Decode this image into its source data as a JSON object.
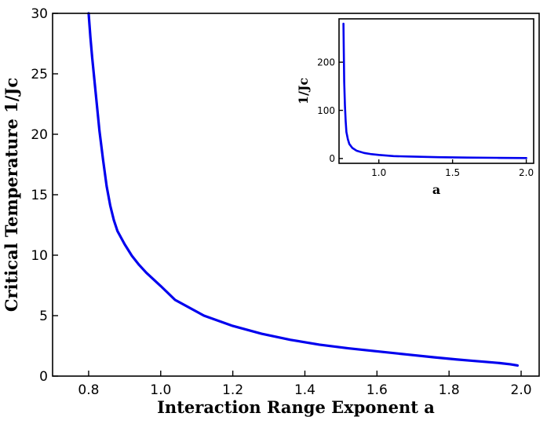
{
  "chart_data": [
    {
      "id": "main",
      "type": "line",
      "title": "",
      "xlabel": "Interaction Range Exponent a",
      "ylabel": "Critical Temperature 1/Jc",
      "xlim": [
        0.7,
        2.05
      ],
      "ylim": [
        0,
        30
      ],
      "xticks": [
        0.8,
        1.0,
        1.2,
        1.4,
        1.6,
        1.8,
        2.0
      ],
      "xtick_labels": [
        "0.8",
        "1.0",
        "1.2",
        "1.4",
        "1.6",
        "1.8",
        "2.0"
      ],
      "yticks": [
        0,
        5,
        10,
        15,
        20,
        25,
        30
      ],
      "ytick_labels": [
        "0",
        "5",
        "10",
        "15",
        "20",
        "25",
        "30"
      ],
      "grid": false,
      "legend": "none",
      "series": [
        {
          "color": "#0000ee",
          "x": [
            0.8,
            0.805,
            0.81,
            0.82,
            0.83,
            0.84,
            0.85,
            0.86,
            0.87,
            0.88,
            0.9,
            0.92,
            0.94,
            0.96,
            1.0,
            1.04,
            1.12,
            1.2,
            1.28,
            1.36,
            1.44,
            1.52,
            1.6,
            1.68,
            1.76,
            1.82,
            1.86,
            1.9,
            1.94,
            1.97,
            1.99
          ],
          "y": [
            30.0,
            28.0,
            26.3,
            23.3,
            20.3,
            17.9,
            15.7,
            14.1,
            12.9,
            12.0,
            10.9,
            9.95,
            9.2,
            8.55,
            7.45,
            6.3,
            5.0,
            4.15,
            3.5,
            3.0,
            2.6,
            2.3,
            2.05,
            1.8,
            1.55,
            1.38,
            1.28,
            1.18,
            1.08,
            0.98,
            0.88
          ]
        }
      ]
    },
    {
      "id": "inset",
      "type": "line",
      "title": "",
      "xlabel": "a",
      "ylabel": "1/Jc",
      "xlim": [
        0.73,
        2.05
      ],
      "ylim": [
        -10,
        290
      ],
      "xticks": [
        1.0,
        1.5,
        2.0
      ],
      "xtick_labels": [
        "1.0",
        "1.5",
        "2.0"
      ],
      "yticks": [
        0,
        100,
        200
      ],
      "ytick_labels": [
        "0",
        "100",
        "200"
      ],
      "grid": false,
      "legend": "none",
      "series": [
        {
          "color": "#0000ee",
          "x": [
            0.76,
            0.762,
            0.765,
            0.77,
            0.775,
            0.78,
            0.79,
            0.8,
            0.82,
            0.85,
            0.9,
            0.95,
            1.0,
            1.1,
            1.2,
            1.4,
            1.6,
            1.8,
            2.0
          ],
          "y": [
            280,
            230,
            160,
            110,
            78,
            55,
            40,
            30,
            22,
            16,
            11.5,
            9.0,
            7.4,
            5.0,
            4.1,
            2.7,
            2.0,
            1.4,
            0.9
          ]
        }
      ]
    }
  ]
}
